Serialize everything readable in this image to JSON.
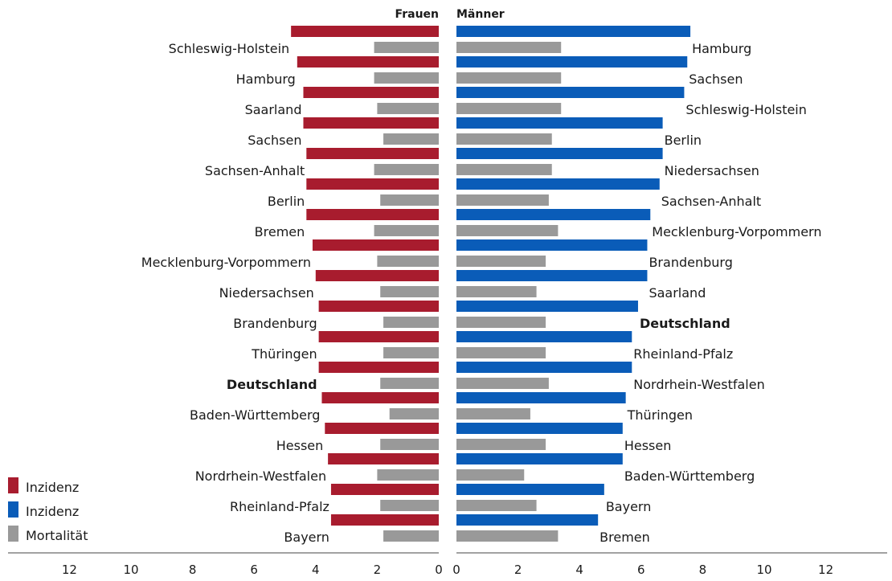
{
  "chart_data": {
    "type": "bar",
    "orientation": "horizontal",
    "xlim": [
      0,
      14
    ],
    "ticks": [
      0,
      2,
      4,
      6,
      8,
      10,
      12
    ],
    "tick_labels": [
      "0",
      "2",
      "4",
      "6",
      "8",
      "10",
      "12"
    ],
    "highlight": "Deutschland",
    "legend": {
      "placement": "bottom-left",
      "items": [
        {
          "label": "Inzidenz",
          "color": "#a81c2e"
        },
        {
          "label": "Inzidenz",
          "color": "#0a5cb8"
        },
        {
          "label": "Mortalität",
          "color": "#999999"
        }
      ]
    },
    "panels": [
      {
        "title": "Frauen",
        "incidence_color": "#a81c2e",
        "mortality_color": "#999999",
        "categories": [
          "Schleswig-Holstein",
          "Hamburg",
          "Saarland",
          "Sachsen",
          "Sachsen-Anhalt",
          "Berlin",
          "Bremen",
          "Mecklenburg-Vorpommern",
          "Niedersachsen",
          "Brandenburg",
          "Thüringen",
          "Deutschland",
          "Baden-Württemberg",
          "Hessen",
          "Nordrhein-Westfalen",
          "Rheinland-Pfalz",
          "Bayern"
        ],
        "incidence": [
          4.8,
          4.6,
          4.4,
          4.4,
          4.3,
          4.3,
          4.3,
          4.1,
          4.0,
          3.9,
          3.9,
          3.9,
          3.8,
          3.7,
          3.6,
          3.5,
          3.5
        ],
        "mortality": [
          2.1,
          2.1,
          2.0,
          1.8,
          2.1,
          1.9,
          2.1,
          2.0,
          1.9,
          1.8,
          1.8,
          1.9,
          1.6,
          1.9,
          2.0,
          1.9,
          1.8
        ]
      },
      {
        "title": "Männer",
        "incidence_color": "#0a5cb8",
        "mortality_color": "#999999",
        "categories": [
          "Hamburg",
          "Sachsen",
          "Schleswig-Holstein",
          "Berlin",
          "Niedersachsen",
          "Sachsen-Anhalt",
          "Mecklenburg-Vorpommern",
          "Brandenburg",
          "Saarland",
          "Deutschland",
          "Rheinland-Pfalz",
          "Nordrhein-Westfalen",
          "Thüringen",
          "Hessen",
          "Baden-Württemberg",
          "Bayern",
          "Bremen"
        ],
        "incidence": [
          7.6,
          7.5,
          7.4,
          6.7,
          6.7,
          6.6,
          6.3,
          6.2,
          6.2,
          5.9,
          5.7,
          5.7,
          5.5,
          5.4,
          5.4,
          4.8,
          4.6
        ],
        "mortality": [
          3.4,
          3.4,
          3.4,
          3.1,
          3.1,
          3.0,
          3.3,
          2.9,
          2.6,
          2.9,
          2.9,
          3.0,
          2.4,
          2.9,
          2.2,
          2.6,
          3.3
        ]
      }
    ]
  }
}
